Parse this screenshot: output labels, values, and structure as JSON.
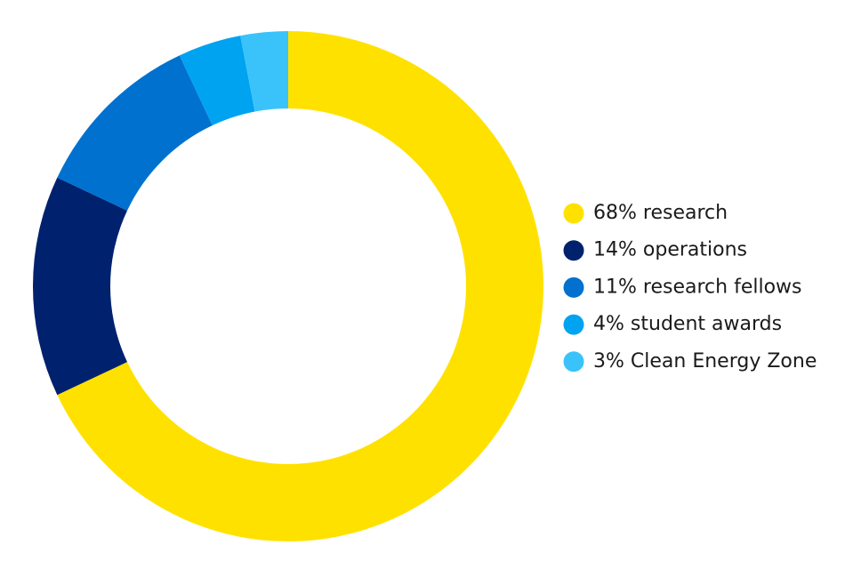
{
  "chart_data": {
    "type": "donut",
    "categories": [
      "research",
      "operations",
      "research fellows",
      "student awards",
      "Clean Energy Zone"
    ],
    "values": [
      68,
      14,
      11,
      4,
      3
    ],
    "value_labels": [
      "68%",
      "14%",
      "11%",
      "4%",
      "3%"
    ],
    "colors": [
      "#FFE100",
      "#00226E",
      "#0071CE",
      "#00A3F0",
      "#3AC3FA"
    ],
    "legend": "right"
  }
}
